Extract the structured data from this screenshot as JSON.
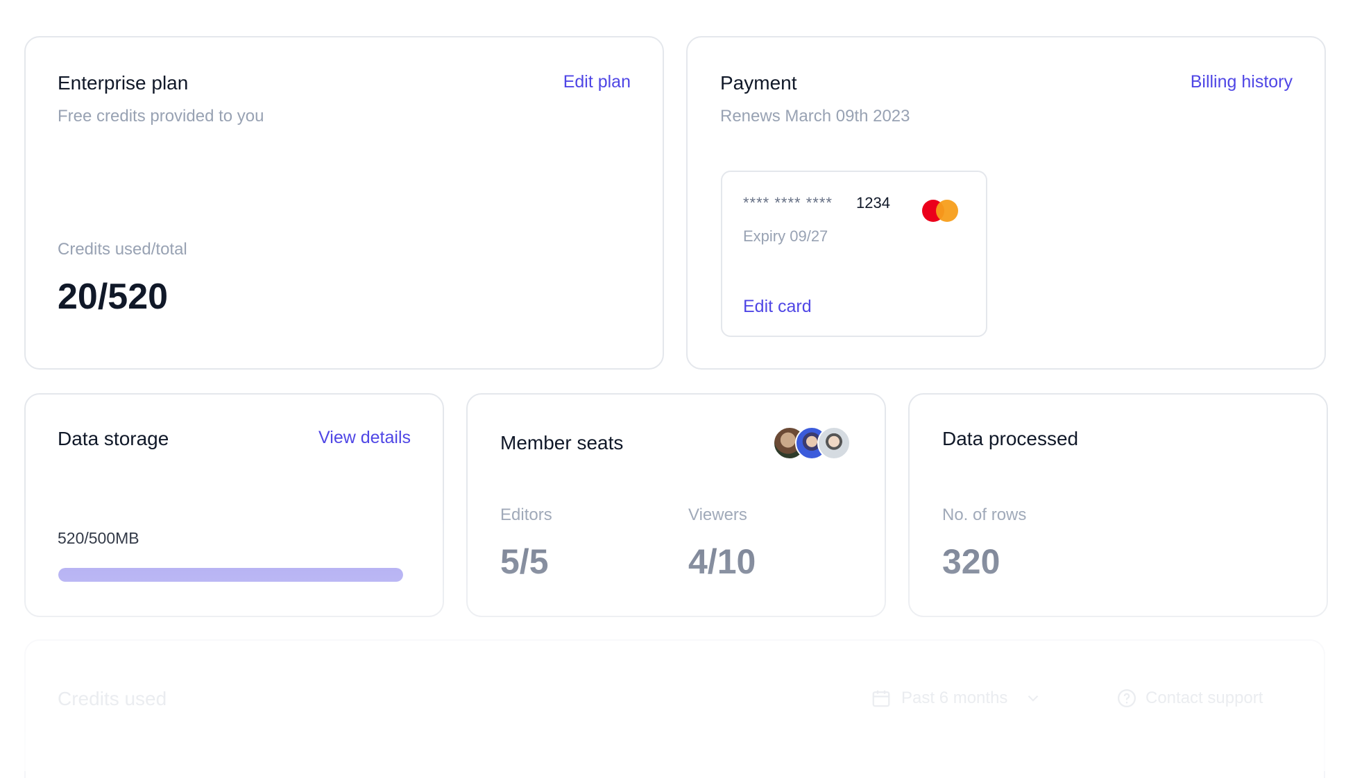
{
  "enterprise": {
    "title": "Enterprise plan",
    "edit_label": "Edit plan",
    "subtitle": "Free credits provided to you",
    "credits_label": "Credits used/total",
    "credits_value": "20/520"
  },
  "payment": {
    "title": "Payment",
    "billing_label": "Billing history",
    "renews": "Renews March 09th 2023",
    "card": {
      "masked": "**** **** ****",
      "last4": "1234",
      "expiry": "Expiry 09/27",
      "edit_label": "Edit card",
      "brand_icon": "mastercard-icon"
    }
  },
  "storage": {
    "title": "Data storage",
    "details_label": "View details",
    "usage": "520/500MB",
    "fill_fraction": 1.0
  },
  "seats": {
    "title": "Member seats",
    "editors_label": "Editors",
    "editors_value": "5/5",
    "viewers_label": "Viewers",
    "viewers_value": "4/10"
  },
  "processed": {
    "title": "Data processed",
    "rows_label": "No. of rows",
    "rows_value": "320"
  },
  "credits_used": {
    "title": "Credits used",
    "range": "Past 6 months",
    "support_label": "Contact support"
  },
  "colors": {
    "accent": "#4f46e5",
    "progress": "#a39ef0",
    "muted": "#98a2b3"
  }
}
